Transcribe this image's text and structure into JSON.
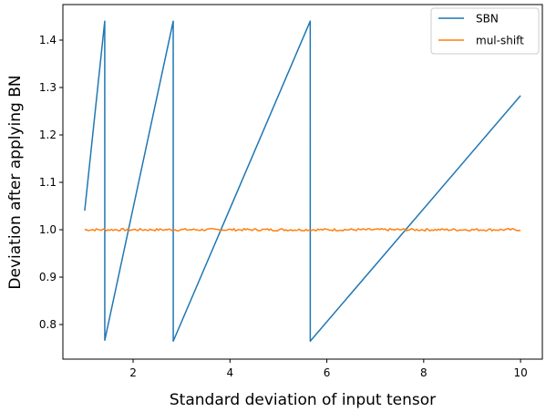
{
  "chart_data": {
    "type": "line",
    "xlabel": "Standard deviation of input tensor",
    "ylabel": "Deviation after applying BN",
    "xlim": [
      0.55,
      10.45
    ],
    "ylim": [
      0.727,
      1.475
    ],
    "xticks": [
      2,
      4,
      6,
      8,
      10
    ],
    "yticks": [
      0.8,
      0.9,
      1.0,
      1.1,
      1.2,
      1.3,
      1.4
    ],
    "ytick_labels": [
      "0.8",
      "0.9",
      "1.0",
      "1.1",
      "1.2",
      "1.3",
      "1.4"
    ],
    "legend_position": "top-right",
    "grid": false,
    "series": [
      {
        "name": "SBN",
        "color": "#1f77b4",
        "x": [
          1.0,
          1.414,
          1.415,
          2.828,
          2.829,
          5.657,
          5.658,
          10.0
        ],
        "y": [
          1.04,
          1.44,
          0.767,
          1.44,
          0.765,
          1.44,
          0.765,
          1.283
        ]
      },
      {
        "name": "mul-shift",
        "color": "#ff7f0e",
        "x": [
          1.0,
          10.0
        ],
        "y": [
          1.0,
          1.0
        ],
        "noise": 0.0025
      }
    ]
  }
}
